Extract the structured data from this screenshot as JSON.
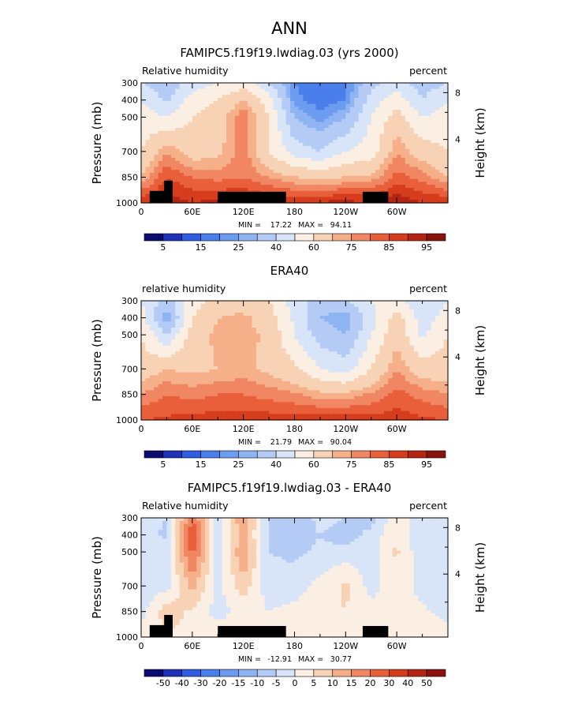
{
  "figure_title": "ANN",
  "common": {
    "left_axis_label": "Pressure (mb)",
    "right_axis_label": "Height (km)",
    "right_label": "percent",
    "pressure_ticks": [
      "300",
      "400",
      "500",
      "700",
      "850",
      "1000"
    ],
    "height_ticks": [
      "8",
      "4"
    ],
    "x_ticks": [
      "0",
      "60E",
      "120E",
      "180",
      "120W",
      "60W"
    ]
  },
  "chart_data": [
    {
      "type": "heatmap",
      "title": "FAMIPC5.f19f19.lwdiag.03 (yrs 2000)",
      "left_label": "Relative humidity",
      "xlabel": "",
      "ylabel": "Pressure (mb)",
      "y2label": "Height (km)",
      "units": "percent",
      "xlim": [
        0,
        360
      ],
      "ylim": [
        1000,
        300
      ],
      "y_ticks": [
        300,
        400,
        500,
        700,
        850,
        1000
      ],
      "y2_ticks": [
        8,
        4
      ],
      "min": 17.22,
      "max": 94.11,
      "min_label": "MIN =",
      "max_label": "MAX =",
      "min_text": "17.22",
      "max_text": "94.11",
      "colorbar": {
        "levels": [
          5,
          10,
          15,
          20,
          25,
          30,
          40,
          50,
          60,
          70,
          75,
          80,
          85,
          90,
          95
        ],
        "labels": [
          "5",
          "15",
          "25",
          "40",
          "60",
          "75",
          "85",
          "95"
        ],
        "colors": [
          "#0b0b70",
          "#1e31b8",
          "#2f5ce0",
          "#4a7eea",
          "#6c9cef",
          "#8eb4f3",
          "#b4ccf5",
          "#d8e4f8",
          "#fbeee2",
          "#f8d2b4",
          "#f5b08a",
          "#f08762",
          "#e85f3a",
          "#d63d1c",
          "#b42412",
          "#8a130d"
        ]
      },
      "field": {
        "lon": [
          0,
          30,
          60,
          90,
          120,
          150,
          180,
          210,
          240,
          270,
          300,
          330,
          360
        ],
        "plev": [
          300,
          400,
          500,
          700,
          850,
          1000
        ],
        "values": [
          [
            40,
            32,
            45,
            50,
            55,
            40,
            20,
            15,
            20,
            35,
            45,
            35,
            40
          ],
          [
            50,
            38,
            55,
            60,
            70,
            55,
            22,
            17,
            20,
            45,
            55,
            40,
            50
          ],
          [
            55,
            50,
            60,
            65,
            80,
            60,
            30,
            22,
            30,
            50,
            65,
            50,
            55
          ],
          [
            60,
            75,
            65,
            68,
            78,
            60,
            45,
            40,
            50,
            55,
            75,
            65,
            60
          ],
          [
            70,
            85,
            80,
            78,
            80,
            75,
            70,
            68,
            70,
            72,
            82,
            78,
            70
          ],
          [
            90,
            93,
            90,
            92,
            92,
            90,
            90,
            91,
            92,
            90,
            94,
            90,
            90
          ]
        ]
      },
      "topography": true
    },
    {
      "type": "heatmap",
      "title": "ERA40",
      "left_label": "relative humidity",
      "xlabel": "",
      "ylabel": "Pressure (mb)",
      "y2label": "Height (km)",
      "units": "percent",
      "xlim": [
        0,
        360
      ],
      "ylim": [
        1000,
        300
      ],
      "y_ticks": [
        300,
        400,
        500,
        700,
        850,
        1000
      ],
      "y2_ticks": [
        8,
        4
      ],
      "min": 21.79,
      "max": 90.04,
      "min_label": "MIN =",
      "max_label": "MAX =",
      "min_text": "21.79",
      "max_text": "90.04",
      "colorbar": {
        "levels": [
          5,
          10,
          15,
          20,
          25,
          30,
          40,
          50,
          60,
          70,
          75,
          80,
          85,
          90,
          95
        ],
        "labels": [
          "5",
          "15",
          "25",
          "40",
          "60",
          "75",
          "85",
          "95"
        ],
        "colors": [
          "#0b0b70",
          "#1e31b8",
          "#2f5ce0",
          "#4a7eea",
          "#6c9cef",
          "#8eb4f3",
          "#b4ccf5",
          "#d8e4f8",
          "#fbeee2",
          "#f8d2b4",
          "#f5b08a",
          "#f08762",
          "#e85f3a",
          "#d63d1c",
          "#b42412",
          "#8a130d"
        ]
      },
      "field": {
        "lon": [
          0,
          30,
          60,
          90,
          120,
          150,
          180,
          210,
          240,
          270,
          300,
          330,
          360
        ],
        "plev": [
          300,
          400,
          500,
          700,
          850,
          1000
        ],
        "values": [
          [
            50,
            35,
            55,
            65,
            65,
            60,
            45,
            35,
            40,
            50,
            55,
            40,
            50
          ],
          [
            55,
            25,
            60,
            70,
            72,
            65,
            48,
            30,
            25,
            45,
            65,
            45,
            55
          ],
          [
            60,
            40,
            65,
            72,
            73,
            68,
            50,
            35,
            30,
            50,
            68,
            48,
            60
          ],
          [
            65,
            70,
            68,
            70,
            72,
            68,
            62,
            50,
            45,
            60,
            75,
            65,
            65
          ],
          [
            75,
            80,
            78,
            80,
            80,
            78,
            76,
            72,
            72,
            76,
            82,
            78,
            75
          ],
          [
            85,
            86,
            87,
            88,
            88,
            88,
            87,
            88,
            88,
            87,
            88,
            86,
            85
          ]
        ]
      },
      "topography": false
    },
    {
      "type": "heatmap",
      "title": "FAMIPC5.f19f19.lwdiag.03 - ERA40",
      "left_label": "Relative humidity",
      "xlabel": "",
      "ylabel": "Pressure (mb)",
      "y2label": "Height (km)",
      "units": "percent",
      "xlim": [
        0,
        360
      ],
      "ylim": [
        1000,
        300
      ],
      "y_ticks": [
        300,
        400,
        500,
        700,
        850,
        1000
      ],
      "y2_ticks": [
        8,
        4
      ],
      "min": -12.91,
      "max": 30.77,
      "min_label": "MIN =",
      "max_label": "MAX =",
      "min_text": "-12.91",
      "max_text": "30.77",
      "colorbar": {
        "levels": [
          -50,
          -40,
          -30,
          -20,
          -15,
          -10,
          -5,
          0,
          5,
          10,
          15,
          20,
          30,
          40,
          50
        ],
        "labels": [
          "-50",
          "-40",
          "-30",
          "-20",
          "-15",
          "-10",
          "-5",
          "0",
          "5",
          "10",
          "15",
          "20",
          "30",
          "40",
          "50"
        ],
        "colors": [
          "#0b0b70",
          "#1e31b8",
          "#2f5ce0",
          "#4a7eea",
          "#6c9cef",
          "#8eb4f3",
          "#b4ccf5",
          "#d8e4f8",
          "#fbeee2",
          "#f8d2b4",
          "#f5b08a",
          "#f08762",
          "#e85f3a",
          "#d63d1c",
          "#b42412",
          "#8a130d"
        ]
      },
      "field": {
        "lon": [
          0,
          30,
          60,
          90,
          120,
          150,
          180,
          210,
          240,
          270,
          300,
          330,
          360
        ],
        "plev": [
          300,
          400,
          500,
          700,
          850,
          1000
        ],
        "values": [
          [
            -3,
            -5,
            20,
            -2,
            15,
            -5,
            -10,
            -3,
            -5,
            -8,
            5,
            -5,
            -3
          ],
          [
            -3,
            -6,
            25,
            -4,
            12,
            -6,
            -8,
            -5,
            -8,
            -3,
            4,
            -5,
            -3
          ],
          [
            -4,
            -3,
            22,
            -3,
            15,
            -5,
            -6,
            -4,
            -3,
            -2,
            6,
            -4,
            -4
          ],
          [
            -3,
            -2,
            12,
            -2,
            8,
            -3,
            -3,
            2,
            6,
            -2,
            3,
            -2,
            -3
          ],
          [
            -2,
            8,
            4,
            -2,
            2,
            0,
            2,
            4,
            5,
            2,
            3,
            1,
            -2
          ],
          [
            3,
            4,
            3,
            3,
            3,
            2,
            3,
            3,
            4,
            3,
            4,
            3,
            3
          ]
        ]
      },
      "topography": true
    }
  ]
}
